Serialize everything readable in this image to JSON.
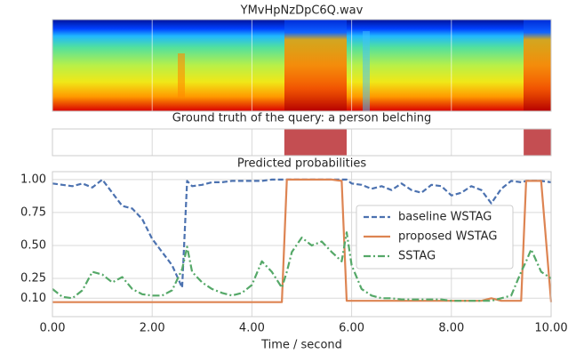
{
  "chart_data": [
    {
      "type": "image",
      "title": "YMvHpNzDpC6Q.wav",
      "xlim": [
        0,
        10
      ],
      "xticks": [
        0,
        2,
        4,
        6,
        8,
        10
      ]
    },
    {
      "type": "timeline",
      "title": "Ground truth of the query: a person belching",
      "xlim": [
        0,
        10
      ],
      "xticks": [
        0,
        2,
        4,
        6,
        8,
        10
      ],
      "segments": [
        [
          4.65,
          5.9
        ],
        [
          9.45,
          10
        ]
      ],
      "color": "#c44e52"
    },
    {
      "type": "line",
      "title": "Predicted probabilities",
      "xlabel": "Time / second",
      "x": [
        0,
        0.2,
        0.4,
        0.6,
        0.8,
        1,
        1.2,
        1.4,
        1.6,
        1.8,
        2,
        2.2,
        2.4,
        2.6,
        2.7,
        2.8,
        3,
        3.2,
        3.4,
        3.6,
        3.8,
        4,
        4.2,
        4.4,
        4.6,
        4.7,
        4.8,
        5,
        5.2,
        5.4,
        5.6,
        5.8,
        5.9,
        6,
        6.2,
        6.4,
        6.6,
        6.8,
        7,
        7.2,
        7.4,
        7.6,
        7.8,
        8,
        8.2,
        8.4,
        8.6,
        8.8,
        9,
        9.2,
        9.4,
        9.5,
        9.6,
        9.8,
        10
      ],
      "series": [
        {
          "name": "baseline WSTAG",
          "color": "#4c72b0",
          "dash": "6,3",
          "values": [
            0.97,
            0.96,
            0.95,
            0.97,
            0.94,
            1.0,
            0.9,
            0.8,
            0.78,
            0.7,
            0.55,
            0.45,
            0.35,
            0.18,
            0.99,
            0.95,
            0.96,
            0.98,
            0.98,
            0.99,
            0.99,
            0.99,
            0.99,
            1.0,
            1.0,
            1.0,
            1.0,
            1.0,
            1.0,
            1.0,
            1.0,
            1.0,
            1.0,
            0.97,
            0.96,
            0.93,
            0.95,
            0.92,
            0.97,
            0.92,
            0.9,
            0.96,
            0.95,
            0.88,
            0.9,
            0.95,
            0.92,
            0.82,
            0.93,
            0.99,
            0.98,
            0.99,
            0.99,
            0.99,
            0.98
          ]
        },
        {
          "name": "proposed WSTAG",
          "color": "#dd8452",
          "dash": "none",
          "values": [
            0.07,
            0.07,
            0.07,
            0.07,
            0.07,
            0.07,
            0.07,
            0.07,
            0.07,
            0.07,
            0.07,
            0.07,
            0.07,
            0.07,
            0.07,
            0.07,
            0.07,
            0.07,
            0.07,
            0.07,
            0.07,
            0.07,
            0.07,
            0.07,
            0.07,
            1.0,
            1.0,
            1.0,
            1.0,
            1.0,
            1.0,
            0.99,
            0.08,
            0.08,
            0.08,
            0.08,
            0.08,
            0.08,
            0.08,
            0.08,
            0.08,
            0.08,
            0.08,
            0.08,
            0.08,
            0.08,
            0.08,
            0.1,
            0.08,
            0.08,
            0.08,
            0.99,
            0.99,
            0.99,
            0.07
          ]
        },
        {
          "name": "SSTAG",
          "color": "#55a868",
          "dash": "8,3,2,3",
          "values": [
            0.17,
            0.11,
            0.1,
            0.16,
            0.3,
            0.28,
            0.22,
            0.26,
            0.17,
            0.13,
            0.12,
            0.12,
            0.16,
            0.32,
            0.49,
            0.3,
            0.22,
            0.17,
            0.14,
            0.12,
            0.14,
            0.2,
            0.38,
            0.3,
            0.18,
            0.3,
            0.45,
            0.56,
            0.5,
            0.53,
            0.45,
            0.38,
            0.6,
            0.35,
            0.17,
            0.12,
            0.1,
            0.1,
            0.09,
            0.09,
            0.09,
            0.09,
            0.09,
            0.08,
            0.08,
            0.08,
            0.08,
            0.08,
            0.1,
            0.12,
            0.3,
            0.38,
            0.47,
            0.3,
            0.25
          ]
        }
      ],
      "xlim": [
        0,
        10
      ],
      "xticks": [
        {
          "value": 0,
          "label": "0.00"
        },
        {
          "value": 2,
          "label": "2.00"
        },
        {
          "value": 4,
          "label": "4.00"
        },
        {
          "value": 6,
          "label": "6.00"
        },
        {
          "value": 8,
          "label": "8.00"
        },
        {
          "value": 10,
          "label": "10.00"
        }
      ],
      "ylim": [
        -0.04,
        1.06
      ],
      "yticks": [
        {
          "value": 0.1,
          "label": "0.10"
        },
        {
          "value": 0.25,
          "label": "0.25"
        },
        {
          "value": 0.5,
          "label": "0.50"
        },
        {
          "value": 0.75,
          "label": "0.75"
        },
        {
          "value": 1,
          "label": "1.00"
        }
      ],
      "grid": true,
      "legend": "center right"
    }
  ]
}
